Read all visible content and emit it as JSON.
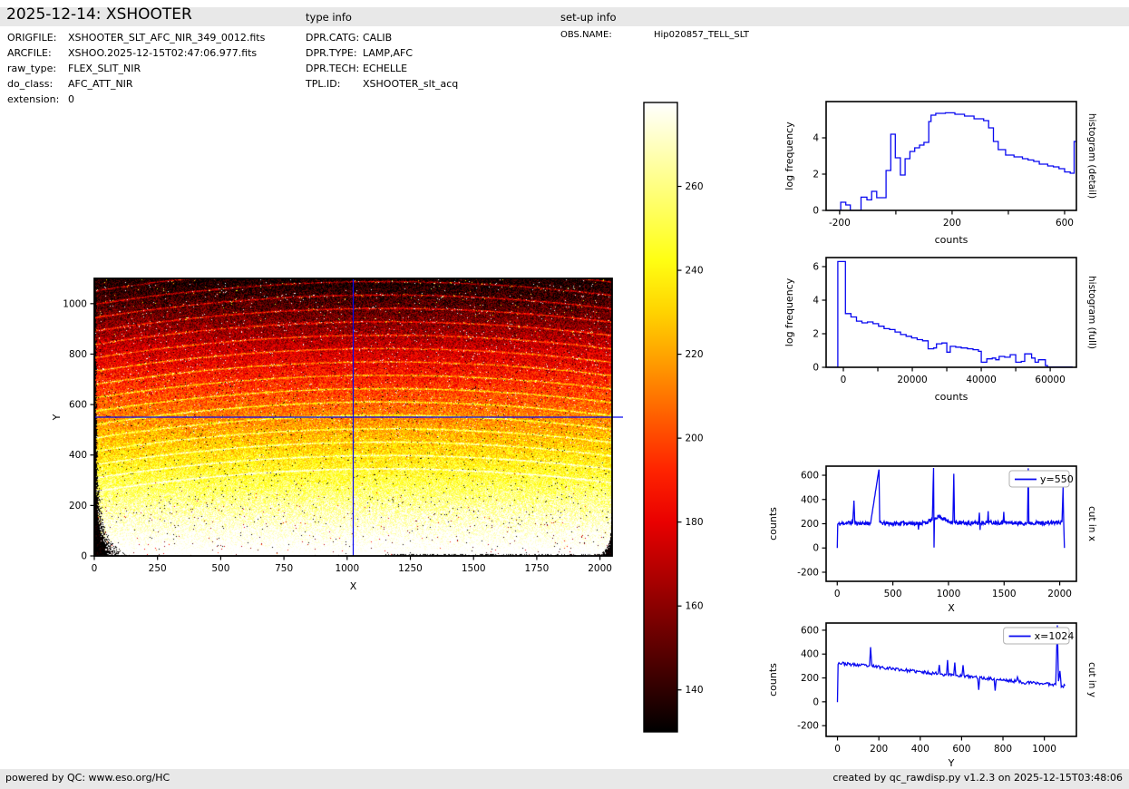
{
  "header": {
    "title": "2025-12-14: XSHOOTER",
    "type_info_label": "type info",
    "setup_info_label": "set-up info"
  },
  "file_info": {
    "rows": [
      {
        "label": "ORIGFILE:",
        "value": "XSHOOTER_SLT_AFC_NIR_349_0012.fits"
      },
      {
        "label": "ARCFILE:",
        "value": "XSHOO.2025-12-15T02:47:06.977.fits"
      },
      {
        "label": "raw_type:",
        "value": "FLEX_SLIT_NIR"
      },
      {
        "label": "do_class:",
        "value": "AFC_ATT_NIR"
      },
      {
        "label": "extension:",
        "value": "0"
      }
    ]
  },
  "type_info": {
    "rows": [
      {
        "label": "DPR.CATG:",
        "value": "CALIB"
      },
      {
        "label": "DPR.TYPE:",
        "value": "LAMP,AFC"
      },
      {
        "label": "DPR.TECH:",
        "value": "ECHELLE"
      },
      {
        "label": "TPL.ID:",
        "value": "XSHOOTER_slt_acq"
      }
    ]
  },
  "setup_info": {
    "rows": [
      {
        "label": "OBS.NAME:",
        "value": "Hip020857_TELL_SLT"
      }
    ]
  },
  "footer": {
    "left": "powered by QC: www.eso.org/HC",
    "right": "created by qc_rawdisp.py v1.2.3 on 2025-12-15T03:48:06"
  },
  "colors": {
    "line": "#0808f0",
    "crosshair": "#0808f0",
    "frame": "#000000",
    "band_bg": "#e8e8e8",
    "legend_border": "#b0b0b0"
  },
  "chart_data": [
    {
      "id": "main_image",
      "type": "heatmap",
      "description": "raw NIR detector frame, hot colormap, echelle order traces",
      "xlabel": "X",
      "ylabel": "Y",
      "xlim": [
        0,
        2048
      ],
      "ylim": [
        0,
        1100
      ],
      "xticks": [
        0,
        250,
        500,
        750,
        1000,
        1250,
        1500,
        1750,
        2000
      ],
      "yticks": [
        0,
        200,
        400,
        600,
        800,
        1000
      ],
      "colormap": "hot",
      "vmin": 130,
      "vmax": 280,
      "background_counts_bottom": 295,
      "background_counts_top": 132,
      "n_order_traces": 16,
      "crosshair": {
        "x": 1024,
        "y": 550
      }
    },
    {
      "id": "colorbar",
      "type": "colorbar",
      "colormap": "hot",
      "vmin": 130,
      "vmax": 280,
      "ticks": [
        140,
        160,
        180,
        200,
        220,
        240,
        260
      ]
    },
    {
      "id": "hist_detail",
      "type": "step-line",
      "right_label": "histogram (detail)",
      "xlabel": "counts",
      "ylabel": "log frequency",
      "xlim": [
        -248,
        642
      ],
      "ylim": [
        0,
        6.0
      ],
      "xticks": [
        {
          "v": -200,
          "l": "-200"
        },
        {
          "v": 0,
          "l": ""
        },
        {
          "v": 200,
          "l": "200"
        },
        {
          "v": 400,
          "l": ""
        },
        {
          "v": 600,
          "l": "600"
        }
      ],
      "yticks": [
        {
          "v": 0,
          "l": "0"
        },
        {
          "v": 2,
          "l": "2"
        },
        {
          "v": 4,
          "l": "4"
        }
      ],
      "ylabel_off": -37,
      "steps": [
        [
          -235,
          0
        ],
        [
          -196,
          0.45
        ],
        [
          -178,
          0.3
        ],
        [
          -162,
          0
        ],
        [
          -124,
          0.73
        ],
        [
          -103,
          0.58
        ],
        [
          -86,
          1.05
        ],
        [
          -68,
          0.7
        ],
        [
          -35,
          2.2
        ],
        [
          -18,
          4.2
        ],
        [
          -2,
          2.9
        ],
        [
          16,
          1.95
        ],
        [
          33,
          2.85
        ],
        [
          50,
          3.25
        ],
        [
          67,
          3.45
        ],
        [
          84,
          3.6
        ],
        [
          100,
          3.75
        ],
        [
          117,
          4.9
        ],
        [
          125,
          5.25
        ],
        [
          142,
          5.35
        ],
        [
          176,
          5.38
        ],
        [
          210,
          5.3
        ],
        [
          244,
          5.2
        ],
        [
          278,
          5.05
        ],
        [
          312,
          4.95
        ],
        [
          330,
          4.55
        ],
        [
          347,
          3.8
        ],
        [
          364,
          3.35
        ],
        [
          390,
          3.05
        ],
        [
          420,
          2.95
        ],
        [
          450,
          2.85
        ],
        [
          470,
          2.78
        ],
        [
          490,
          2.7
        ],
        [
          510,
          2.55
        ],
        [
          540,
          2.45
        ],
        [
          560,
          2.4
        ],
        [
          580,
          2.3
        ],
        [
          600,
          2.12
        ],
        [
          620,
          2.05
        ],
        [
          634,
          3.8
        ]
      ],
      "x_end": 641
    },
    {
      "id": "hist_full",
      "type": "step-line",
      "right_label": "histogram (full)",
      "xlabel": "counts",
      "ylabel": "log frequency",
      "xlim": [
        -5000,
        67600
      ],
      "ylim": [
        0,
        6.54
      ],
      "xticks": [
        {
          "v": 0,
          "l": "0"
        },
        {
          "v": 10000,
          "l": ""
        },
        {
          "v": 20000,
          "l": "20000"
        },
        {
          "v": 30000,
          "l": ""
        },
        {
          "v": 40000,
          "l": "40000"
        },
        {
          "v": 50000,
          "l": ""
        },
        {
          "v": 60000,
          "l": "60000"
        }
      ],
      "yticks": [
        {
          "v": 0,
          "l": "0"
        },
        {
          "v": 2,
          "l": "2"
        },
        {
          "v": 4,
          "l": "4"
        },
        {
          "v": 6,
          "l": "6"
        }
      ],
      "ylabel_off": -37,
      "steps": [
        [
          -4900,
          0
        ],
        [
          -1600,
          6.3
        ],
        [
          600,
          3.2
        ],
        [
          2200,
          3.0
        ],
        [
          3800,
          2.75
        ],
        [
          5400,
          2.65
        ],
        [
          7000,
          2.7
        ],
        [
          8600,
          2.6
        ],
        [
          10200,
          2.45
        ],
        [
          11800,
          2.3
        ],
        [
          13400,
          2.25
        ],
        [
          15000,
          2.1
        ],
        [
          16600,
          1.95
        ],
        [
          18200,
          1.85
        ],
        [
          19800,
          1.75
        ],
        [
          21400,
          1.65
        ],
        [
          23000,
          1.58
        ],
        [
          24600,
          1.1
        ],
        [
          26200,
          1.15
        ],
        [
          27000,
          1.4
        ],
        [
          28600,
          1.45
        ],
        [
          30000,
          0.9
        ],
        [
          31000,
          1.25
        ],
        [
          32600,
          1.2
        ],
        [
          34200,
          1.15
        ],
        [
          36000,
          1.1
        ],
        [
          37600,
          1.05
        ],
        [
          39200,
          0.95
        ],
        [
          40000,
          0.3
        ],
        [
          41600,
          0.5
        ],
        [
          43200,
          0.55
        ],
        [
          44200,
          0.45
        ],
        [
          45200,
          0.65
        ],
        [
          46800,
          0.6
        ],
        [
          48400,
          0.75
        ],
        [
          50000,
          0.3
        ],
        [
          51600,
          0.35
        ],
        [
          52600,
          0.8
        ],
        [
          54600,
          0.55
        ],
        [
          55600,
          0.3
        ],
        [
          56600,
          0.45
        ],
        [
          58600,
          0.1
        ],
        [
          59200,
          0.02
        ]
      ],
      "x_end": 66500
    },
    {
      "id": "cut_x",
      "type": "noisy-line",
      "right_label": "cut in x",
      "legend": "y=550",
      "xlabel": "X",
      "ylabel": "counts",
      "xlim": [
        -100,
        2150
      ],
      "ylim": [
        -275,
        675
      ],
      "xticks": [
        {
          "v": 0,
          "l": "0"
        },
        {
          "v": 500,
          "l": "500"
        },
        {
          "v": 1000,
          "l": "1000"
        },
        {
          "v": 1500,
          "l": "1500"
        },
        {
          "v": 2000,
          "l": "2000"
        }
      ],
      "yticks": [
        {
          "v": -200,
          "l": "-200"
        },
        {
          "v": 0,
          "l": "0"
        },
        {
          "v": 200,
          "l": "200"
        },
        {
          "v": 400,
          "l": "400"
        },
        {
          "v": 600,
          "l": "600"
        }
      ],
      "ylabel_off": -55,
      "noise": 34,
      "step": 4,
      "seed": 11,
      "anchors": [
        [
          0,
          0
        ],
        [
          4,
          195
        ],
        [
          60,
          205
        ],
        [
          140,
          210
        ],
        [
          150,
          390
        ],
        [
          158,
          205
        ],
        [
          300,
          205
        ],
        [
          375,
          650
        ],
        [
          382,
          205
        ],
        [
          500,
          200
        ],
        [
          600,
          205
        ],
        [
          725,
          205
        ],
        [
          730,
          140
        ],
        [
          736,
          205
        ],
        [
          800,
          210
        ],
        [
          855,
          235
        ],
        [
          866,
          660
        ],
        [
          870,
          0
        ],
        [
          874,
          235
        ],
        [
          890,
          255
        ],
        [
          920,
          260
        ],
        [
          960,
          240
        ],
        [
          1000,
          220
        ],
        [
          1040,
          215
        ],
        [
          1048,
          610
        ],
        [
          1054,
          210
        ],
        [
          1150,
          205
        ],
        [
          1270,
          205
        ],
        [
          1278,
          290
        ],
        [
          1284,
          160
        ],
        [
          1290,
          210
        ],
        [
          1350,
          210
        ],
        [
          1357,
          300
        ],
        [
          1363,
          210
        ],
        [
          1490,
          210
        ],
        [
          1497,
          310
        ],
        [
          1503,
          210
        ],
        [
          1600,
          205
        ],
        [
          1710,
          205
        ],
        [
          1717,
          660
        ],
        [
          1723,
          210
        ],
        [
          1850,
          205
        ],
        [
          1980,
          210
        ],
        [
          2020,
          215
        ],
        [
          2030,
          500
        ],
        [
          2036,
          210
        ],
        [
          2042,
          0
        ]
      ]
    },
    {
      "id": "cut_y",
      "type": "noisy-line",
      "right_label": "cut in y",
      "legend": "x=1024",
      "xlabel": "Y",
      "ylabel": "counts",
      "xlim": [
        -55,
        1155
      ],
      "ylim": [
        -290,
        660
      ],
      "xticks": [
        {
          "v": 0,
          "l": "0"
        },
        {
          "v": 200,
          "l": "200"
        },
        {
          "v": 400,
          "l": "400"
        },
        {
          "v": 600,
          "l": "600"
        },
        {
          "v": 800,
          "l": "800"
        },
        {
          "v": 1000,
          "l": "1000"
        }
      ],
      "yticks": [
        {
          "v": -200,
          "l": "-200"
        },
        {
          "v": 0,
          "l": "0"
        },
        {
          "v": 200,
          "l": "200"
        },
        {
          "v": 400,
          "l": "400"
        },
        {
          "v": 600,
          "l": "600"
        }
      ],
      "ylabel_off": -55,
      "noise": 26,
      "step": 4,
      "seed": 23,
      "anchors": [
        [
          0,
          0
        ],
        [
          3,
          325
        ],
        [
          30,
          320
        ],
        [
          80,
          310
        ],
        [
          120,
          305
        ],
        [
          155,
          300
        ],
        [
          160,
          455
        ],
        [
          166,
          300
        ],
        [
          210,
          290
        ],
        [
          260,
          280
        ],
        [
          310,
          268
        ],
        [
          360,
          258
        ],
        [
          410,
          248
        ],
        [
          460,
          240
        ],
        [
          487,
          238
        ],
        [
          492,
          320
        ],
        [
          497,
          232
        ],
        [
          527,
          228
        ],
        [
          532,
          350
        ],
        [
          537,
          226
        ],
        [
          562,
          224
        ],
        [
          567,
          330
        ],
        [
          572,
          222
        ],
        [
          602,
          218
        ],
        [
          607,
          300
        ],
        [
          612,
          215
        ],
        [
          650,
          208
        ],
        [
          678,
          205
        ],
        [
          683,
          110
        ],
        [
          688,
          200
        ],
        [
          720,
          196
        ],
        [
          757,
          192
        ],
        [
          762,
          90
        ],
        [
          767,
          190
        ],
        [
          800,
          182
        ],
        [
          840,
          175
        ],
        [
          865,
          172
        ],
        [
          870,
          205
        ],
        [
          875,
          170
        ],
        [
          900,
          162
        ],
        [
          950,
          158
        ],
        [
          1000,
          152
        ],
        [
          1030,
          148
        ],
        [
          1055,
          145
        ],
        [
          1063,
          640
        ],
        [
          1068,
          175
        ],
        [
          1075,
          260
        ],
        [
          1082,
          135
        ],
        [
          1092,
          130
        ],
        [
          1100,
          135
        ]
      ]
    }
  ]
}
